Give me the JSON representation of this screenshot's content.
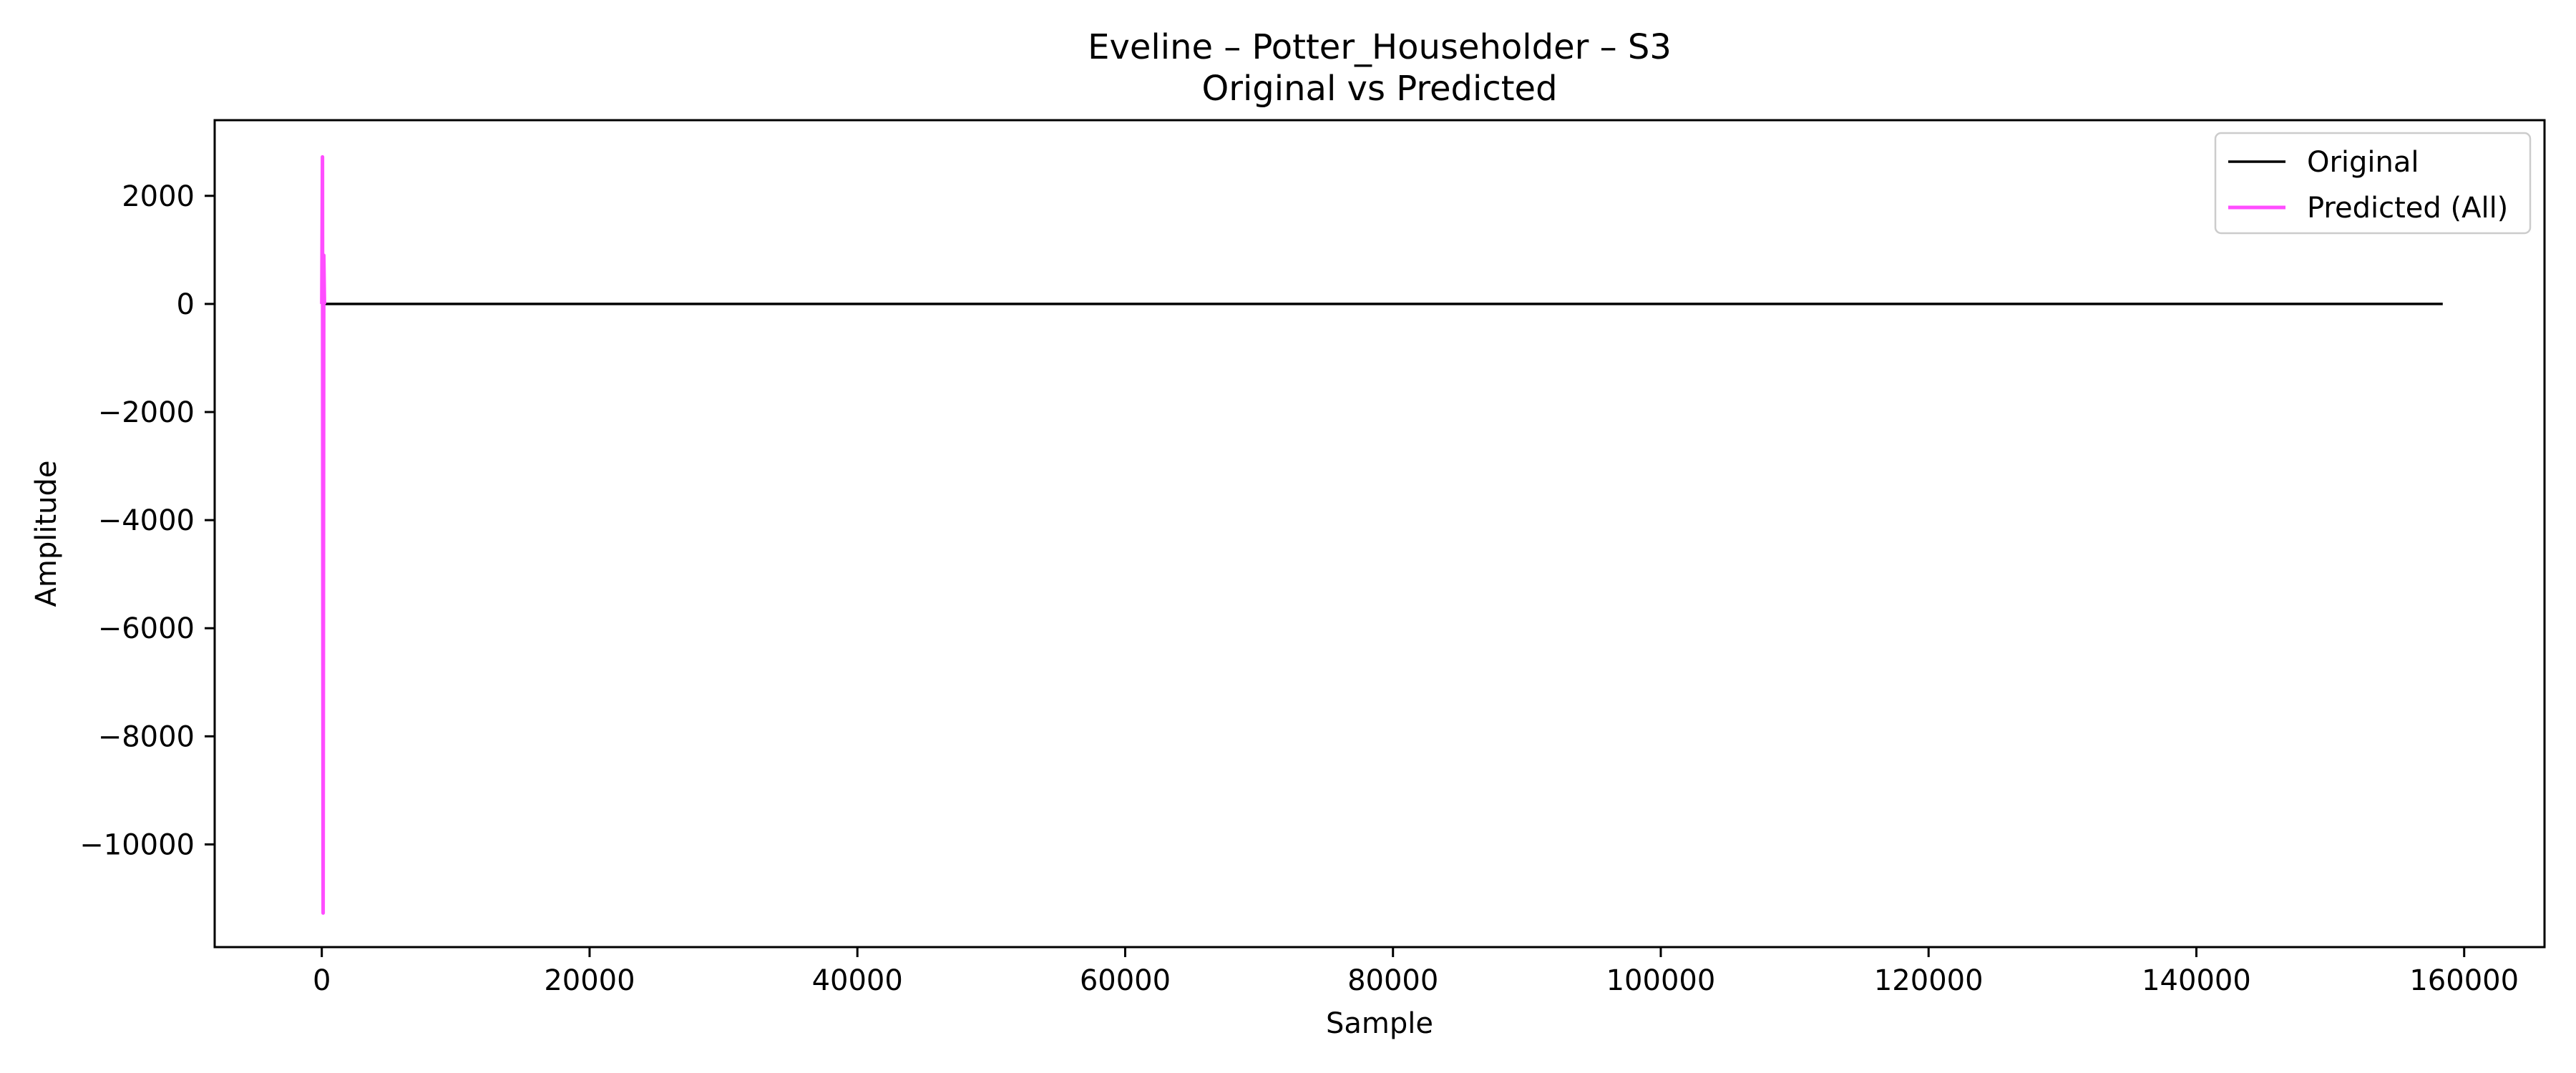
{
  "chart_data": {
    "type": "line",
    "title": "Eveline – Potter_Householder – S3",
    "subtitle": "Original vs Predicted",
    "xlabel": "Sample",
    "ylabel": "Amplitude",
    "xlim": [
      -8000,
      166000
    ],
    "ylim": [
      -11900,
      3400
    ],
    "xticks": [
      0,
      20000,
      40000,
      60000,
      80000,
      100000,
      120000,
      140000,
      160000
    ],
    "yticks": [
      2000,
      0,
      -2000,
      -4000,
      -6000,
      -8000,
      -10000
    ],
    "grid": false,
    "legend_position": "top-right",
    "series": [
      {
        "name": "Original",
        "color": "#000000",
        "x": [
          0,
          158400
        ],
        "y": [
          0,
          0
        ]
      },
      {
        "name": "Predicted (All)",
        "color": "#ff4dff",
        "x": [
          0,
          50,
          100,
          150,
          200
        ],
        "y": [
          0,
          2720,
          -11270,
          900,
          0
        ]
      }
    ]
  }
}
